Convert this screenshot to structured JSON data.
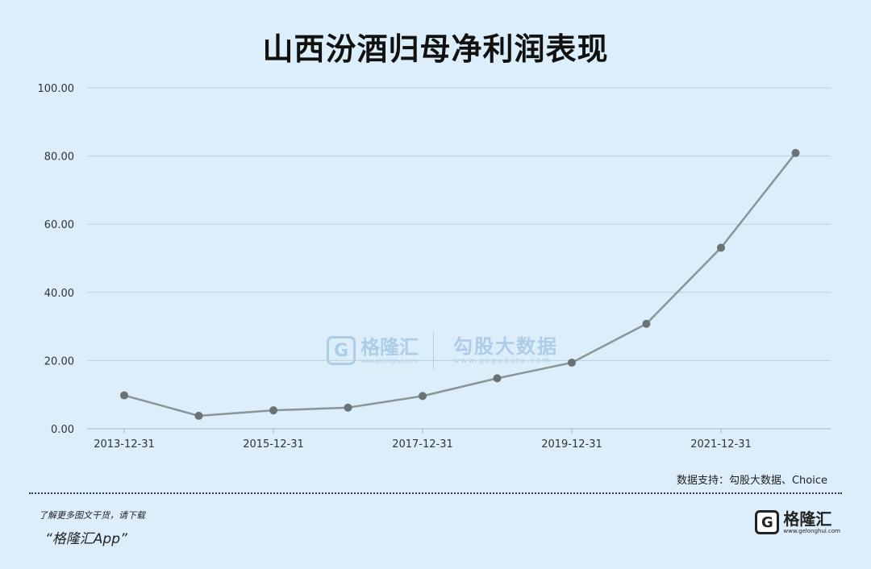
{
  "chart_data": {
    "type": "line",
    "title": "山西汾酒归母净利润表现",
    "x": [
      "2013-12-31",
      "2014-12-31",
      "2015-12-31",
      "2016-12-31",
      "2017-12-31",
      "2018-12-31",
      "2019-12-31",
      "2020-12-31",
      "2021-12-31",
      "2022-12-31"
    ],
    "x_tick_labels": [
      "2013-12-31",
      "2015-12-31",
      "2017-12-31",
      "2019-12-31",
      "2021-12-31"
    ],
    "series": [
      {
        "values": [
          9.8,
          3.8,
          5.4,
          6.2,
          9.6,
          14.8,
          19.4,
          30.8,
          53.1,
          80.9
        ]
      }
    ],
    "y_tick_labels": [
      "0.00",
      "20.00",
      "40.00",
      "60.00",
      "80.00",
      "100.00"
    ],
    "ylim": [
      0,
      100
    ],
    "grid": "horizontal",
    "line_color": "#8a9599",
    "marker_color": "#6b7275"
  },
  "source": "数据支持：勾股大数据、Choice",
  "promo": {
    "line1": "了解更多图文干货，请下载",
    "line2": "“格隆汇App”"
  },
  "logo": {
    "mark": "G",
    "name": "格隆汇",
    "url": "www.gelonghui.com"
  },
  "watermark": {
    "mark": "G",
    "name1": "格隆汇",
    "url1": "www.gelonghui.com",
    "name2": "勾股大数据",
    "url2": "www.gogudata.com"
  }
}
